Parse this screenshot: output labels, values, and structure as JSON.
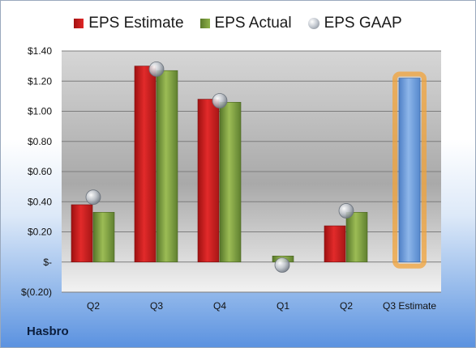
{
  "company": "Hasbro",
  "legend": {
    "estimate": "EPS Estimate",
    "actual": "EPS Actual",
    "gaap": "EPS GAAP"
  },
  "colors": {
    "estimate": "#cc1f1f",
    "actual": "#7fa23c",
    "gaap": "#b9bec6",
    "projected": "#6a9ad8",
    "projected_glow": "#f2a33a"
  },
  "chart_data": {
    "type": "bar",
    "categories": [
      "Q2",
      "Q3",
      "Q4",
      "Q1",
      "Q2",
      "Q3 Estimate"
    ],
    "series": [
      {
        "name": "EPS Estimate",
        "values": [
          0.38,
          1.3,
          1.08,
          null,
          0.24,
          null
        ]
      },
      {
        "name": "EPS Actual",
        "values": [
          0.33,
          1.27,
          1.06,
          0.04,
          0.33,
          null
        ]
      },
      {
        "name": "EPS GAAP",
        "values": [
          0.43,
          1.28,
          1.07,
          -0.02,
          0.34,
          null
        ]
      },
      {
        "name": "Q3 Estimate",
        "values": [
          null,
          null,
          null,
          null,
          null,
          1.22
        ]
      }
    ],
    "ylim": [
      -0.2,
      1.4
    ],
    "yticks": [
      -0.2,
      0,
      0.2,
      0.4,
      0.6,
      0.8,
      1.0,
      1.2,
      1.4
    ],
    "ytick_labels": [
      "$(0.20)",
      "$-",
      "$0.20",
      "$0.40",
      "$0.60",
      "$0.80",
      "$1.00",
      "$1.20",
      "$1.40"
    ],
    "grid": true,
    "legend_position": "top"
  }
}
